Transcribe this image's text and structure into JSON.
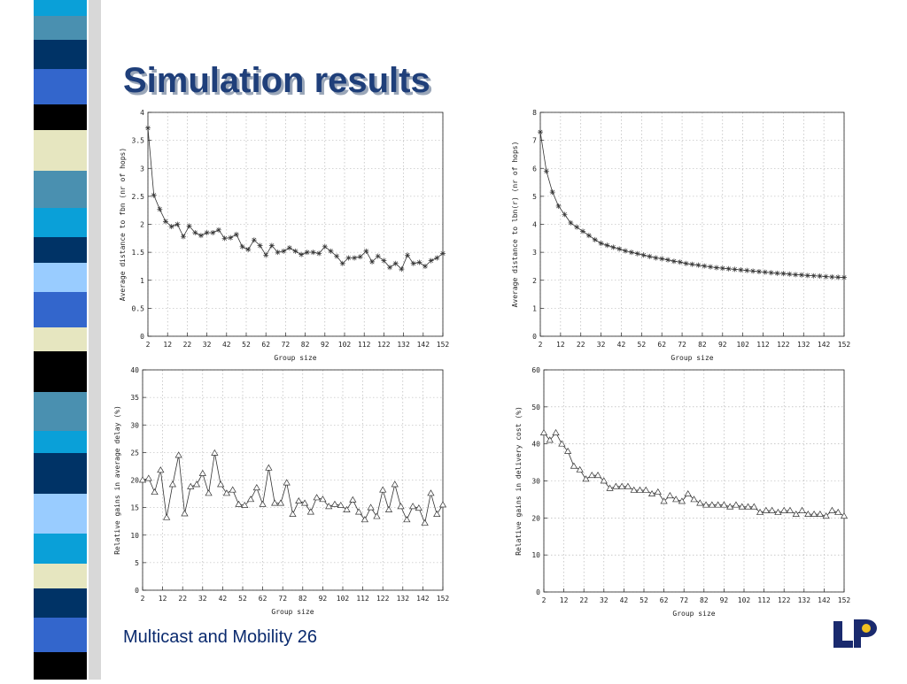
{
  "slide": {
    "title": "Simulation results",
    "footer": "Multicast and Mobility 26"
  },
  "chart_data": [
    {
      "type": "line",
      "marker": "star",
      "color": "#333333",
      "grid": true,
      "xlabel": "Group size",
      "ylabel": "Average distance to fbn (nr of hops)",
      "x": [
        2,
        5,
        8,
        11,
        14,
        17,
        20,
        23,
        26,
        29,
        32,
        35,
        38,
        41,
        44,
        47,
        50,
        53,
        56,
        59,
        62,
        65,
        68,
        71,
        74,
        77,
        80,
        83,
        86,
        89,
        92,
        95,
        98,
        101,
        104,
        107,
        110,
        113,
        116,
        119,
        122,
        125,
        128,
        131,
        134,
        137,
        140,
        143,
        146,
        149,
        152
      ],
      "values": [
        3.72,
        2.52,
        2.27,
        2.05,
        1.96,
        2.0,
        1.78,
        1.97,
        1.85,
        1.8,
        1.85,
        1.85,
        1.9,
        1.75,
        1.76,
        1.82,
        1.6,
        1.55,
        1.72,
        1.62,
        1.45,
        1.62,
        1.5,
        1.52,
        1.58,
        1.52,
        1.46,
        1.5,
        1.5,
        1.48,
        1.6,
        1.52,
        1.43,
        1.3,
        1.4,
        1.4,
        1.42,
        1.52,
        1.33,
        1.43,
        1.35,
        1.23,
        1.3,
        1.2,
        1.45,
        1.3,
        1.32,
        1.25,
        1.35,
        1.4,
        1.48
      ],
      "xlim": [
        2,
        152
      ],
      "xticks": [
        2,
        12,
        22,
        32,
        42,
        52,
        62,
        72,
        82,
        92,
        102,
        112,
        122,
        132,
        142,
        152
      ],
      "ylim": [
        0,
        4
      ],
      "yticks": [
        0,
        0.5,
        1,
        1.5,
        2,
        2.5,
        3,
        3.5,
        4
      ]
    },
    {
      "type": "line",
      "marker": "star",
      "color": "#333333",
      "grid": true,
      "xlabel": "Group size",
      "ylabel": "Average distance to lbn(r) (nr of hops)",
      "x": [
        2,
        5,
        8,
        11,
        14,
        17,
        20,
        23,
        26,
        29,
        32,
        35,
        38,
        41,
        44,
        47,
        50,
        53,
        56,
        59,
        62,
        65,
        68,
        71,
        74,
        77,
        80,
        83,
        86,
        89,
        92,
        95,
        98,
        101,
        104,
        107,
        110,
        113,
        116,
        119,
        122,
        125,
        128,
        131,
        134,
        137,
        140,
        143,
        146,
        149,
        152
      ],
      "values": [
        7.3,
        5.9,
        5.15,
        4.65,
        4.35,
        4.05,
        3.9,
        3.75,
        3.6,
        3.45,
        3.32,
        3.25,
        3.18,
        3.12,
        3.05,
        3.0,
        2.95,
        2.9,
        2.85,
        2.8,
        2.77,
        2.73,
        2.68,
        2.65,
        2.6,
        2.57,
        2.54,
        2.51,
        2.48,
        2.45,
        2.43,
        2.41,
        2.39,
        2.37,
        2.35,
        2.33,
        2.31,
        2.29,
        2.27,
        2.25,
        2.24,
        2.22,
        2.2,
        2.19,
        2.17,
        2.16,
        2.15,
        2.13,
        2.12,
        2.11,
        2.1
      ],
      "xlim": [
        2,
        152
      ],
      "xticks": [
        2,
        12,
        22,
        32,
        42,
        52,
        62,
        72,
        82,
        92,
        102,
        112,
        122,
        132,
        142,
        152
      ],
      "ylim": [
        0,
        8
      ],
      "yticks": [
        0,
        1,
        2,
        3,
        4,
        5,
        6,
        7,
        8
      ]
    },
    {
      "type": "line",
      "marker": "triangle",
      "color": "#333333",
      "grid": true,
      "xlabel": "Group size",
      "ylabel": "Relative gains in average delay (%)",
      "x": [
        2,
        5,
        8,
        11,
        14,
        17,
        20,
        23,
        26,
        29,
        32,
        35,
        38,
        41,
        44,
        47,
        50,
        53,
        56,
        59,
        62,
        65,
        68,
        71,
        74,
        77,
        80,
        83,
        86,
        89,
        92,
        95,
        98,
        101,
        104,
        107,
        110,
        113,
        116,
        119,
        122,
        125,
        128,
        131,
        134,
        137,
        140,
        143,
        146,
        149,
        152
      ],
      "values": [
        20,
        20.3,
        17.8,
        21.8,
        13.2,
        19.2,
        24.5,
        13.9,
        18.8,
        19.2,
        21.2,
        17.6,
        24.9,
        19.2,
        17.6,
        18.2,
        15.6,
        15.4,
        16.5,
        18.6,
        15.6,
        22.2,
        15.8,
        15.8,
        19.5,
        13.8,
        16.2,
        15.8,
        14.2,
        16.8,
        16.5,
        15.2,
        15.6,
        15.4,
        14.6,
        16.4,
        14.2,
        12.8,
        15.0,
        13.4,
        18.2,
        14.6,
        19.2,
        15.2,
        12.8,
        15.2,
        14.9,
        12.2,
        17.6,
        13.8,
        15.5
      ],
      "xlim": [
        2,
        152
      ],
      "xticks": [
        2,
        12,
        22,
        32,
        42,
        52,
        62,
        72,
        82,
        92,
        102,
        112,
        122,
        132,
        142,
        152
      ],
      "ylim": [
        0,
        40
      ],
      "yticks": [
        0,
        5,
        10,
        15,
        20,
        25,
        30,
        35,
        40
      ]
    },
    {
      "type": "line",
      "marker": "triangle",
      "color": "#333333",
      "grid": true,
      "xlabel": "Group size",
      "ylabel": "Relative gains in delivery cost (%)",
      "x": [
        2,
        5,
        8,
        11,
        14,
        17,
        20,
        23,
        26,
        29,
        32,
        35,
        38,
        41,
        44,
        47,
        50,
        53,
        56,
        59,
        62,
        65,
        68,
        71,
        74,
        77,
        80,
        83,
        86,
        89,
        92,
        95,
        98,
        101,
        104,
        107,
        110,
        113,
        116,
        119,
        122,
        125,
        128,
        131,
        134,
        137,
        140,
        143,
        146,
        149,
        152
      ],
      "values": [
        43,
        41,
        43,
        40,
        38,
        34,
        33,
        30.5,
        31.5,
        31.5,
        30,
        28,
        28.5,
        28.5,
        28.5,
        27.5,
        27.5,
        27.5,
        26.5,
        27,
        24.5,
        26,
        25,
        24.5,
        26.5,
        25,
        24,
        23.5,
        23.5,
        23.5,
        23.5,
        23,
        23.5,
        23,
        23,
        23,
        21.5,
        22,
        22,
        21.5,
        22,
        22,
        21,
        22,
        21,
        21,
        21,
        20.5,
        22,
        21.5,
        20.5
      ],
      "xlim": [
        2,
        152
      ],
      "xticks": [
        2,
        12,
        22,
        32,
        42,
        52,
        62,
        72,
        82,
        92,
        102,
        112,
        122,
        132,
        142,
        152
      ],
      "ylim": [
        0,
        60
      ],
      "yticks": [
        0,
        10,
        20,
        30,
        40,
        50,
        60
      ]
    }
  ]
}
